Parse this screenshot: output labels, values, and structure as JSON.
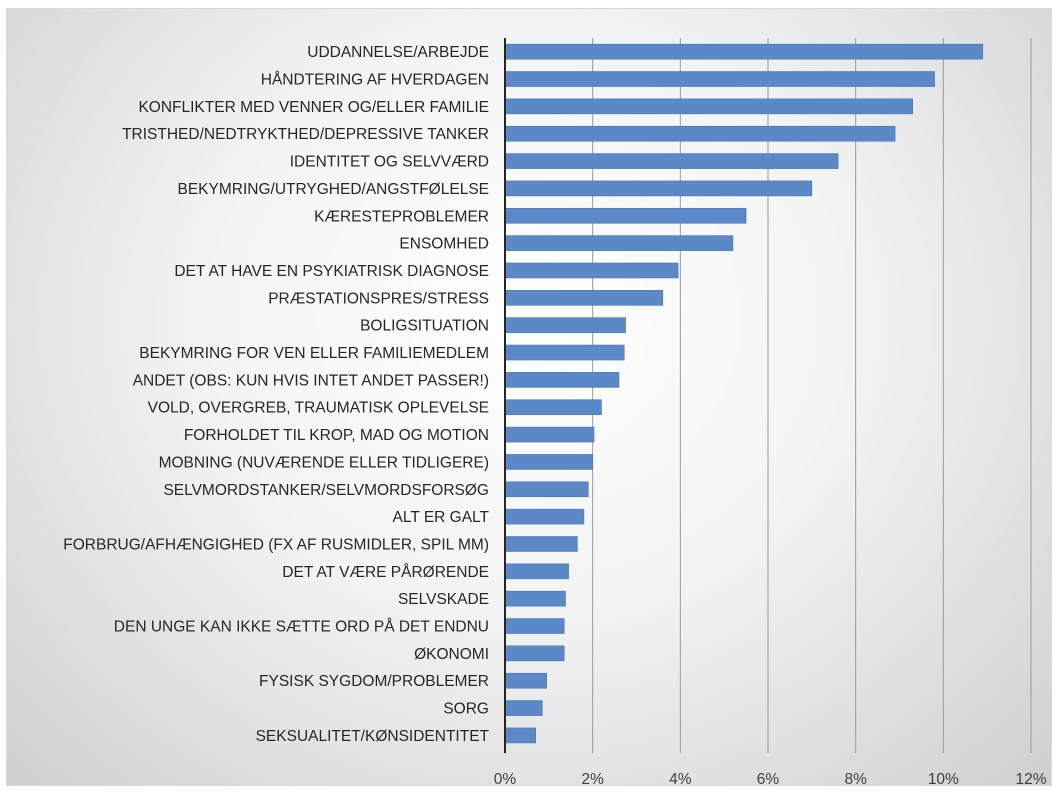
{
  "chart_data": {
    "type": "bar",
    "orientation": "horizontal",
    "categories": [
      "UDDANNELSE/ARBEJDE",
      "HÅNDTERING AF HVERDAGEN",
      "KONFLIKTER MED VENNER OG/ELLER FAMILIE",
      "TRISTHED/NEDTRYKTHED/DEPRESSIVE TANKER",
      "IDENTITET OG SELVVÆRD",
      "BEKYMRING/UTRYGHED/ANGSTFØLELSE",
      "KÆRESTEPROBLEMER",
      "ENSOMHED",
      "DET AT HAVE EN PSYKIATRISK DIAGNOSE",
      "PRÆSTATIONSPRES/STRESS",
      "BOLIGSITUATION",
      "BEKYMRING FOR VEN ELLER FAMILIEMEDLEM",
      "ANDET (OBS: KUN HVIS INTET ANDET PASSER!)",
      "VOLD, OVERGREB, TRAUMATISK OPLEVELSE",
      "FORHOLDET TIL KROP, MAD OG MOTION",
      "MOBNING (NUVÆRENDE ELLER TIDLIGERE)",
      "SELVMORDSTANKER/SELVMORDSFORSØG",
      "ALT ER GALT",
      "FORBRUG/AFHÆNGIGHED (FX AF RUSMIDLER, SPIL MM)",
      "DET AT VÆRE PÅRØRENDE",
      "SELVSKADE",
      "DEN UNGE KAN IKKE SÆTTE ORD PÅ DET ENDNU",
      "ØKONOMI",
      "FYSISK SYGDOM/PROBLEMER",
      "SORG",
      "SEKSUALITET/KØNSIDENTITET"
    ],
    "values": [
      10.9,
      9.8,
      9.3,
      8.9,
      7.6,
      7.0,
      5.5,
      5.2,
      3.95,
      3.6,
      2.75,
      2.72,
      2.6,
      2.2,
      2.03,
      2.0,
      1.9,
      1.8,
      1.65,
      1.45,
      1.38,
      1.35,
      1.35,
      0.95,
      0.85,
      0.7
    ],
    "xlim": [
      0,
      12
    ],
    "xticks": [
      "0%",
      "2%",
      "4%",
      "6%",
      "8%",
      "10%",
      "12%"
    ],
    "xtick_values": [
      0,
      2,
      4,
      6,
      8,
      10,
      12
    ],
    "grid": "vertical",
    "bar_color": "#5b89c8",
    "bar_edge_color": "#4a76b2",
    "gridline_color": "#9a9a9a"
  }
}
